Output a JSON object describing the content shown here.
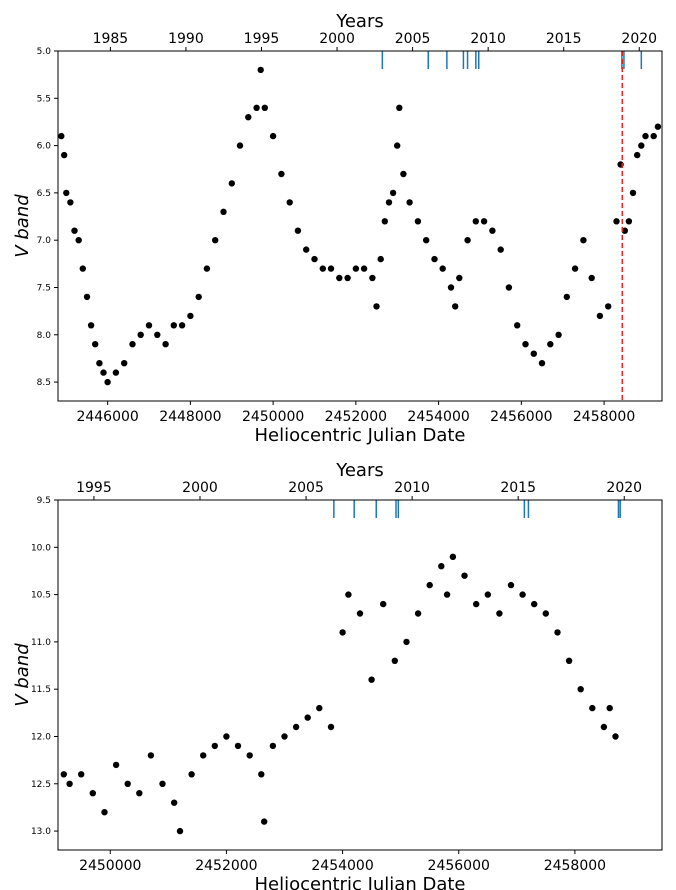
{
  "chart_data": [
    {
      "type": "scatter",
      "title": "",
      "xlabel": "Heliocentric Julian Date",
      "ylabel": "V band",
      "top_axis_label": "Years",
      "xlim": [
        2444800,
        2459400
      ],
      "ylim": [
        8.7,
        5.0
      ],
      "y_inverted": true,
      "x_ticks": [
        2446000,
        2448000,
        2450000,
        2452000,
        2454000,
        2456000,
        2458000
      ],
      "x_tick_labels": [
        "2446000",
        "2448000",
        "2450000",
        "2452000",
        "2454000",
        "2456000",
        "2458000"
      ],
      "y_ticks": [
        5.0,
        5.5,
        6.0,
        6.5,
        7.0,
        7.5,
        8.0,
        8.5
      ],
      "y_tick_labels": [
        "5.0",
        "5.5",
        "6.0",
        "6.5",
        "7.0",
        "7.5",
        "8.0",
        "8.5"
      ],
      "year_ticks": [
        1985,
        1990,
        1995,
        2000,
        2005,
        2010,
        2015,
        2020
      ],
      "year_tick_labels": [
        "1985",
        "1990",
        "1995",
        "2000",
        "2005",
        "2010",
        "2015",
        "2020"
      ],
      "marker_color": "#000000",
      "observation_marks": [
        2452640,
        2453750,
        2454200,
        2454600,
        2454700,
        2454900,
        2454970,
        2458430,
        2458480,
        2458900
      ],
      "observation_mark_color": "#1f77b4",
      "reference_line": {
        "x": 2458440,
        "color": "#d62728",
        "style": "dashed"
      },
      "series": [
        {
          "values": [
            [
              2444880,
              5.9
            ],
            [
              2444950,
              6.1
            ],
            [
              2445000,
              6.5
            ],
            [
              2445100,
              6.6
            ],
            [
              2445200,
              6.9
            ],
            [
              2445300,
              7.0
            ],
            [
              2445400,
              7.3
            ],
            [
              2445500,
              7.6
            ],
            [
              2445600,
              7.9
            ],
            [
              2445700,
              8.1
            ],
            [
              2445800,
              8.3
            ],
            [
              2445900,
              8.4
            ],
            [
              2446000,
              8.5
            ],
            [
              2446200,
              8.4
            ],
            [
              2446400,
              8.3
            ],
            [
              2446600,
              8.1
            ],
            [
              2446800,
              8.0
            ],
            [
              2447000,
              7.9
            ],
            [
              2447200,
              8.0
            ],
            [
              2447400,
              8.1
            ],
            [
              2447600,
              7.9
            ],
            [
              2447800,
              7.9
            ],
            [
              2448000,
              7.8
            ],
            [
              2448200,
              7.6
            ],
            [
              2448400,
              7.3
            ],
            [
              2448600,
              7.0
            ],
            [
              2448800,
              6.7
            ],
            [
              2449000,
              6.4
            ],
            [
              2449200,
              6.0
            ],
            [
              2449400,
              5.7
            ],
            [
              2449600,
              5.6
            ],
            [
              2449700,
              5.2
            ],
            [
              2449800,
              5.6
            ],
            [
              2450000,
              5.9
            ],
            [
              2450200,
              6.3
            ],
            [
              2450400,
              6.6
            ],
            [
              2450600,
              6.9
            ],
            [
              2450800,
              7.1
            ],
            [
              2451000,
              7.2
            ],
            [
              2451200,
              7.3
            ],
            [
              2451400,
              7.3
            ],
            [
              2451600,
              7.4
            ],
            [
              2451800,
              7.4
            ],
            [
              2452000,
              7.3
            ],
            [
              2452200,
              7.3
            ],
            [
              2452400,
              7.4
            ],
            [
              2452500,
              7.7
            ],
            [
              2452600,
              7.2
            ],
            [
              2452700,
              6.8
            ],
            [
              2452800,
              6.6
            ],
            [
              2452900,
              6.5
            ],
            [
              2453000,
              6.0
            ],
            [
              2453050,
              5.6
            ],
            [
              2453150,
              6.3
            ],
            [
              2453300,
              6.6
            ],
            [
              2453500,
              6.8
            ],
            [
              2453700,
              7.0
            ],
            [
              2453900,
              7.2
            ],
            [
              2454100,
              7.3
            ],
            [
              2454300,
              7.5
            ],
            [
              2454400,
              7.7
            ],
            [
              2454500,
              7.4
            ],
            [
              2454700,
              7.0
            ],
            [
              2454900,
              6.8
            ],
            [
              2455100,
              6.8
            ],
            [
              2455300,
              6.9
            ],
            [
              2455500,
              7.1
            ],
            [
              2455700,
              7.5
            ],
            [
              2455900,
              7.9
            ],
            [
              2456100,
              8.1
            ],
            [
              2456300,
              8.2
            ],
            [
              2456500,
              8.3
            ],
            [
              2456700,
              8.1
            ],
            [
              2456900,
              8.0
            ],
            [
              2457100,
              7.6
            ],
            [
              2457300,
              7.3
            ],
            [
              2457500,
              7.0
            ],
            [
              2457700,
              7.4
            ],
            [
              2457900,
              7.8
            ],
            [
              2458100,
              7.7
            ],
            [
              2458300,
              6.8
            ],
            [
              2458400,
              6.2
            ],
            [
              2458500,
              6.9
            ],
            [
              2458600,
              6.8
            ],
            [
              2458700,
              6.5
            ],
            [
              2458800,
              6.1
            ],
            [
              2458900,
              6.0
            ],
            [
              2459000,
              5.9
            ],
            [
              2459200,
              5.9
            ],
            [
              2459300,
              5.8
            ]
          ]
        }
      ]
    },
    {
      "type": "scatter",
      "title": "",
      "xlabel": "Heliocentric Julian Date",
      "ylabel": "V band",
      "top_axis_label": "Years",
      "xlim": [
        2449100,
        2459500
      ],
      "ylim": [
        13.2,
        9.5
      ],
      "y_inverted": true,
      "x_ticks": [
        2450000,
        2452000,
        2454000,
        2456000,
        2458000
      ],
      "x_tick_labels": [
        "2450000",
        "2452000",
        "2454000",
        "2456000",
        "2458000"
      ],
      "y_ticks": [
        9.5,
        10.0,
        10.5,
        11.0,
        11.5,
        12.0,
        12.5,
        13.0
      ],
      "y_tick_labels": [
        "9.5",
        "10.0",
        "10.5",
        "11.0",
        "11.5",
        "12.0",
        "12.5",
        "13.0"
      ],
      "year_ticks": [
        1995,
        2000,
        2005,
        2010,
        2015,
        2020
      ],
      "year_tick_labels": [
        "1995",
        "2000",
        "2005",
        "2010",
        "2015",
        "2020"
      ],
      "marker_color": "#000000",
      "observation_marks": [
        2453850,
        2454200,
        2454580,
        2454920,
        2454960,
        2457130,
        2457200,
        2458750,
        2458780
      ],
      "observation_mark_color": "#1f77b4",
      "series": [
        {
          "values": [
            [
              2449200,
              12.4
            ],
            [
              2449300,
              12.5
            ],
            [
              2449500,
              12.4
            ],
            [
              2449700,
              12.6
            ],
            [
              2449900,
              12.8
            ],
            [
              2450100,
              12.3
            ],
            [
              2450300,
              12.5
            ],
            [
              2450500,
              12.6
            ],
            [
              2450700,
              12.2
            ],
            [
              2450900,
              12.5
            ],
            [
              2451100,
              12.7
            ],
            [
              2451200,
              13.0
            ],
            [
              2451400,
              12.4
            ],
            [
              2451600,
              12.2
            ],
            [
              2451800,
              12.1
            ],
            [
              2452000,
              12.0
            ],
            [
              2452200,
              12.1
            ],
            [
              2452400,
              12.2
            ],
            [
              2452600,
              12.4
            ],
            [
              2452650,
              12.9
            ],
            [
              2452800,
              12.1
            ],
            [
              2453000,
              12.0
            ],
            [
              2453200,
              11.9
            ],
            [
              2453400,
              11.8
            ],
            [
              2453600,
              11.7
            ],
            [
              2453800,
              11.9
            ],
            [
              2454000,
              10.9
            ],
            [
              2454100,
              10.5
            ],
            [
              2454300,
              10.7
            ],
            [
              2454500,
              11.4
            ],
            [
              2454700,
              10.6
            ],
            [
              2454900,
              11.2
            ],
            [
              2455100,
              11.0
            ],
            [
              2455300,
              10.7
            ],
            [
              2455500,
              10.4
            ],
            [
              2455700,
              10.2
            ],
            [
              2455800,
              10.5
            ],
            [
              2455900,
              10.1
            ],
            [
              2456100,
              10.3
            ],
            [
              2456300,
              10.6
            ],
            [
              2456500,
              10.5
            ],
            [
              2456700,
              10.7
            ],
            [
              2456900,
              10.4
            ],
            [
              2457100,
              10.5
            ],
            [
              2457300,
              10.6
            ],
            [
              2457500,
              10.7
            ],
            [
              2457700,
              10.9
            ],
            [
              2457900,
              11.2
            ],
            [
              2458100,
              11.5
            ],
            [
              2458300,
              11.7
            ],
            [
              2458500,
              11.9
            ],
            [
              2458600,
              11.7
            ],
            [
              2458700,
              12.0
            ]
          ]
        }
      ]
    }
  ]
}
